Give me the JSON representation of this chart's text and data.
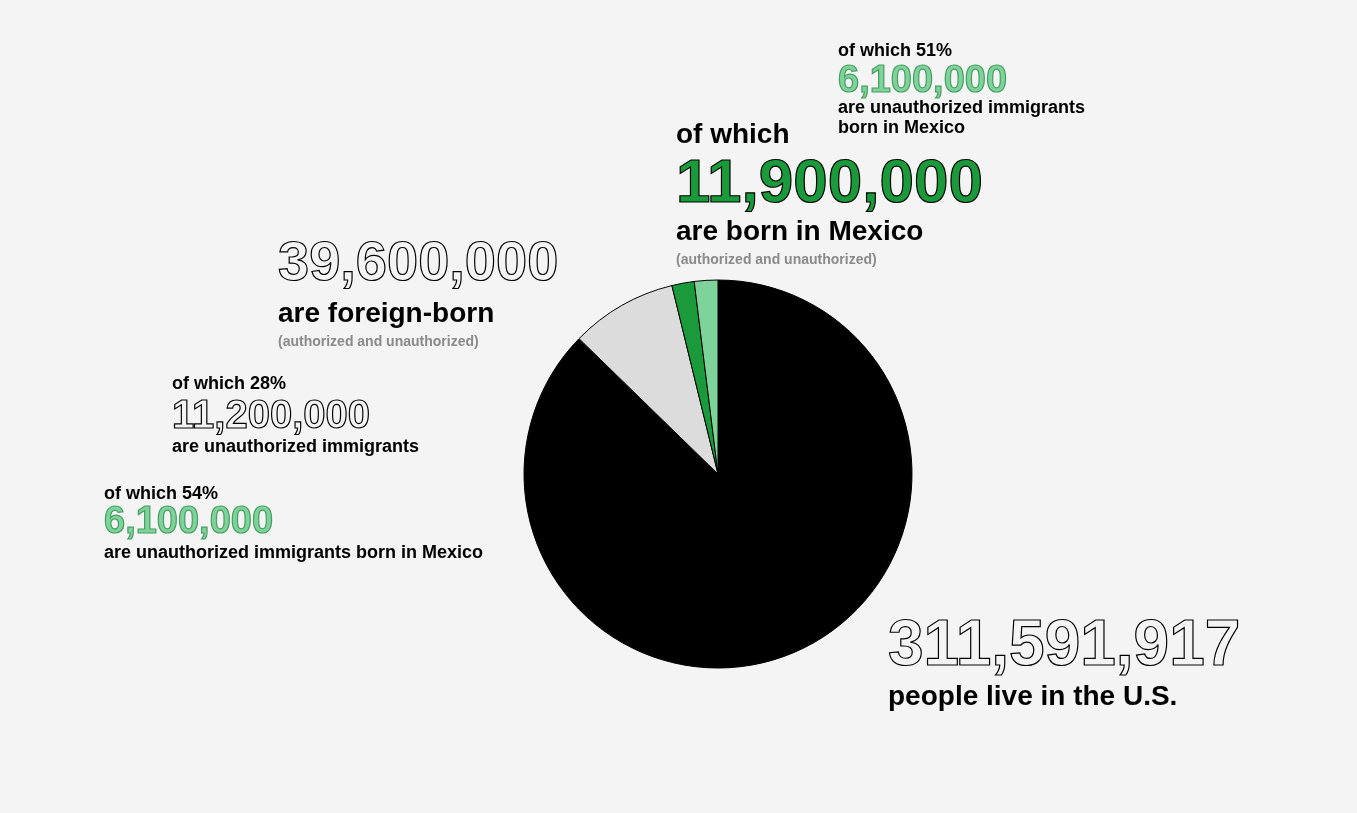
{
  "chart_data": {
    "type": "pie",
    "categories": [
      null,
      null,
      null,
      null
    ],
    "values": [
      87.291,
      8.89,
      1.861,
      1.958
    ],
    "colors": [
      "#000000",
      "#dcdcdc",
      "#1a9a3a",
      "#7dd39a"
    ],
    "annotations": [
      "of which 51%",
      "6,100,000",
      "are unauthorized immigrants",
      "born in Mexico",
      "of which",
      "11,900,000",
      "are born in Mexico",
      "(authorized and unauthorized)",
      "39,600,000",
      "are foreign-born",
      "(authorized and unauthorized)",
      "of which 28%",
      "11,200,000",
      "are unauthorized immigrants",
      "of which 54%",
      "6,100,000",
      "are unauthorized immigrants born in Mexico",
      "311,591,917",
      "people live in the U.S."
    ]
  }
}
